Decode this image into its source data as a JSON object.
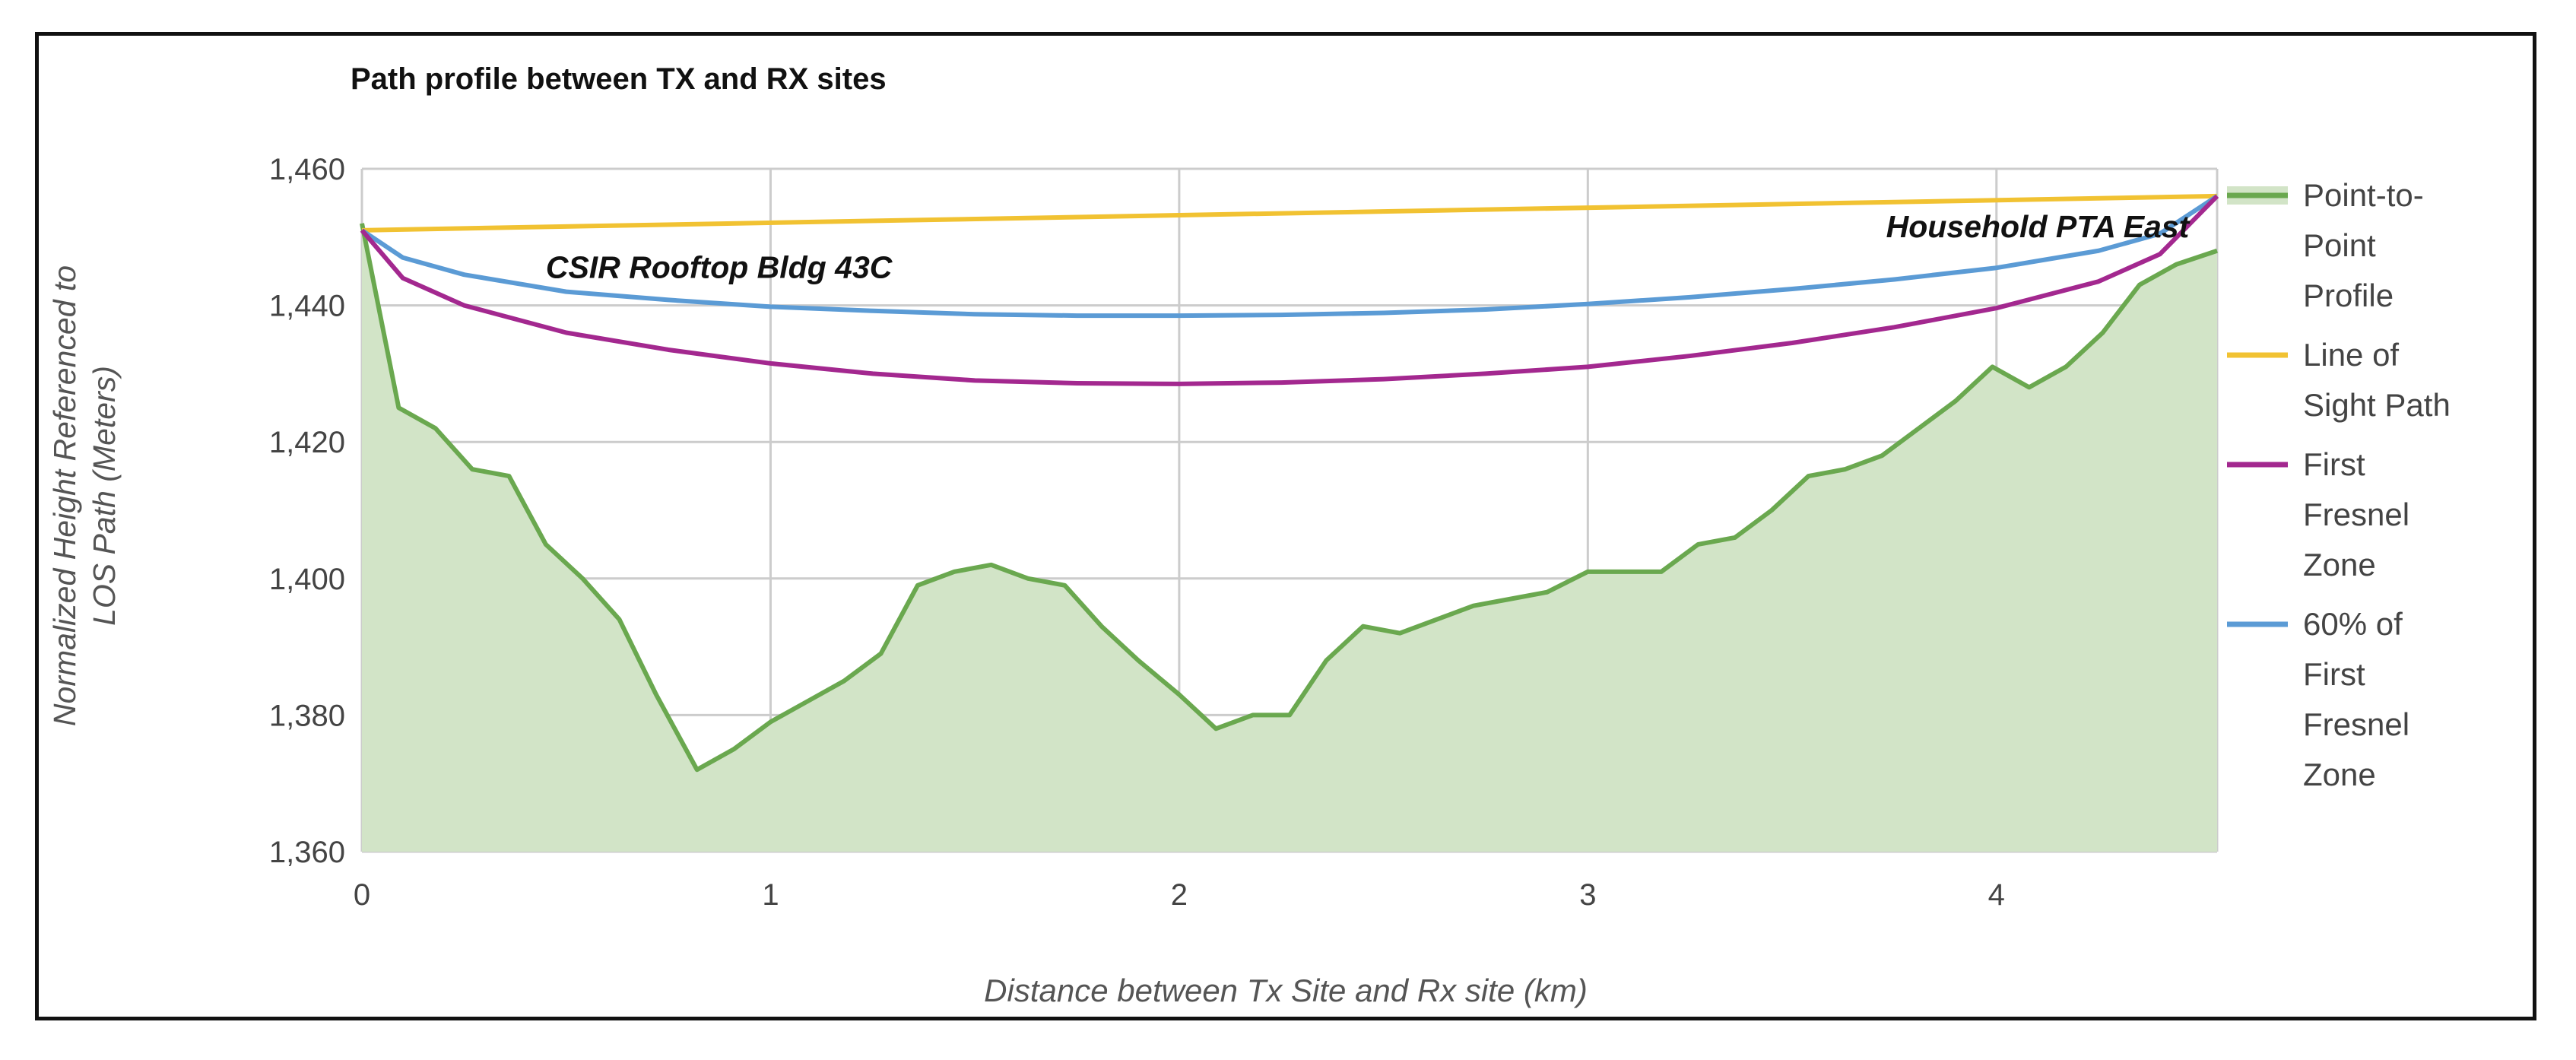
{
  "chart_data": {
    "type": "area",
    "title": "Path profile between TX and RX sites",
    "xlabel": "Distance between Tx Site and Rx site (km)",
    "ylabel_lines": [
      "Normalized Height Referenced to",
      "LOS Path (Meters)"
    ],
    "xlim": [
      0,
      4.54
    ],
    "ylim": [
      1360,
      1460
    ],
    "x_ticks": [
      0,
      1,
      2,
      3,
      4
    ],
    "x_tick_labels": [
      "0",
      "1",
      "2",
      "3",
      "4"
    ],
    "y_ticks": [
      1360,
      1380,
      1400,
      1420,
      1440,
      1460
    ],
    "y_tick_labels": [
      "1,360",
      "1,380",
      "1,400",
      "1,420",
      "1,440",
      "1,460"
    ],
    "grid": true,
    "legend_position": "right",
    "annotations": [
      {
        "text": "CSIR Rooftop Bldg 43C",
        "x": 0.45,
        "y": 1444
      },
      {
        "text": "Household PTA East",
        "x": 3.73,
        "y": 1450
      }
    ],
    "series": [
      {
        "name": "Point-to-Point Profile",
        "legend_lines": [
          "Point-to-",
          "Point",
          "Profile"
        ],
        "kind": "area",
        "color": "#6aa84f",
        "fill": "#d2e4c7",
        "x": [
          0,
          0.09,
          0.18,
          0.27,
          0.36,
          0.45,
          0.54,
          0.63,
          0.72,
          0.82,
          0.91,
          1.0,
          1.09,
          1.18,
          1.27,
          1.36,
          1.45,
          1.54,
          1.63,
          1.72,
          1.81,
          1.9,
          2.0,
          2.09,
          2.18,
          2.27,
          2.36,
          2.45,
          2.54,
          2.63,
          2.72,
          2.81,
          2.9,
          3.0,
          3.09,
          3.18,
          3.27,
          3.36,
          3.45,
          3.54,
          3.63,
          3.72,
          3.81,
          3.9,
          3.99,
          4.08,
          4.17,
          4.26,
          4.35,
          4.44,
          4.54
        ],
        "values": [
          1452,
          1425,
          1422,
          1416,
          1415,
          1405,
          1400,
          1394,
          1383,
          1372,
          1375,
          1379,
          1382,
          1385,
          1389,
          1399,
          1401,
          1402,
          1400,
          1399,
          1393,
          1388,
          1383,
          1378,
          1380,
          1380,
          1388,
          1393,
          1392,
          1394,
          1396,
          1397,
          1398,
          1401,
          1401,
          1401,
          1405,
          1406,
          1410,
          1415,
          1416,
          1418,
          1422,
          1426,
          1431,
          1428,
          1431,
          1436,
          1443,
          1446,
          1448
        ]
      },
      {
        "name": "Line of Sight Path",
        "legend_lines": [
          "Line of",
          "Sight Path"
        ],
        "kind": "line",
        "color": "#f1c232",
        "x": [
          0,
          4.54
        ],
        "values": [
          1451,
          1456
        ]
      },
      {
        "name": "First Fresnel Zone",
        "legend_lines": [
          "First",
          "Fresnel",
          "Zone"
        ],
        "kind": "line",
        "color": "#a3288f",
        "x": [
          0,
          0.1,
          0.25,
          0.5,
          0.75,
          1.0,
          1.25,
          1.5,
          1.75,
          2.0,
          2.25,
          2.5,
          2.75,
          3.0,
          3.25,
          3.5,
          3.75,
          4.0,
          4.25,
          4.4,
          4.54
        ],
        "values": [
          1451,
          1444,
          1440,
          1436,
          1433.5,
          1431.5,
          1430,
          1429,
          1428.6,
          1428.5,
          1428.7,
          1429.2,
          1430,
          1431,
          1432.6,
          1434.5,
          1436.8,
          1439.6,
          1443.5,
          1447.5,
          1456
        ]
      },
      {
        "name": "60% of First Fresnel Zone",
        "legend_lines": [
          "60% of",
          "First",
          "Fresnel",
          "Zone"
        ],
        "kind": "line",
        "color": "#5b9bd5",
        "x": [
          0,
          0.1,
          0.25,
          0.5,
          0.75,
          1.0,
          1.25,
          1.5,
          1.75,
          2.0,
          2.25,
          2.5,
          2.75,
          3.0,
          3.25,
          3.5,
          3.75,
          4.0,
          4.25,
          4.4,
          4.54
        ],
        "values": [
          1451,
          1447,
          1444.5,
          1442,
          1440.8,
          1439.8,
          1439.2,
          1438.7,
          1438.5,
          1438.5,
          1438.6,
          1438.9,
          1439.4,
          1440.2,
          1441.2,
          1442.4,
          1443.8,
          1445.5,
          1448,
          1450.5,
          1456
        ]
      }
    ]
  }
}
